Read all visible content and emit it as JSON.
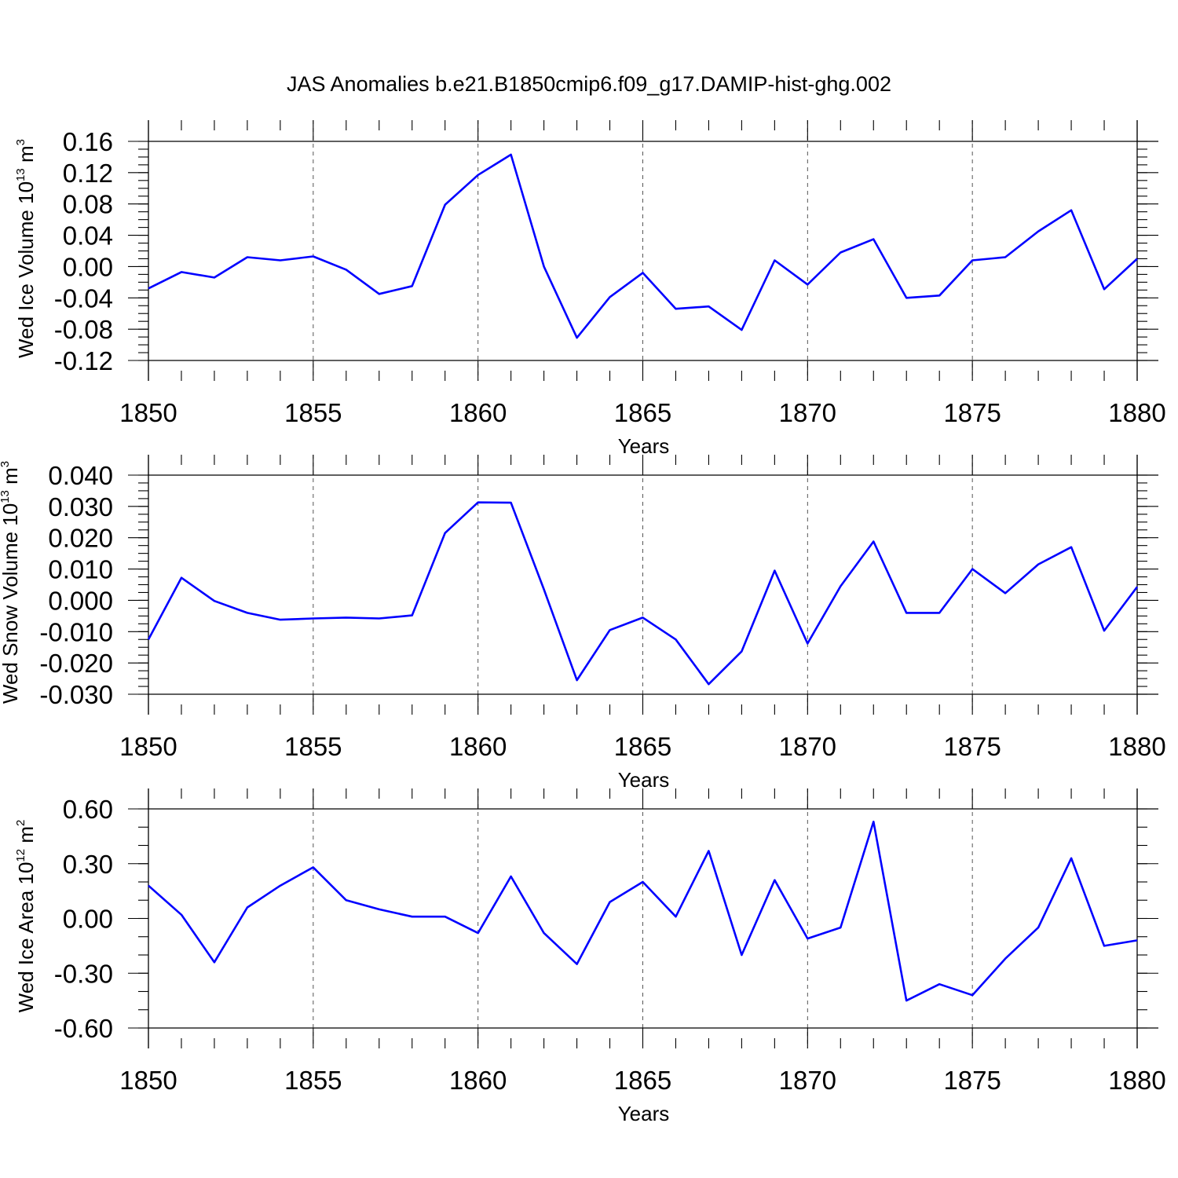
{
  "title": "JAS Anomalies b.e21.B1850cmip6.f09_g17.DAMIP-hist-ghg.002",
  "colors": {
    "line": "#0000ff",
    "axis": "#000000",
    "grid": "#555555"
  },
  "chart_data": [
    {
      "type": "line",
      "ylabel_main": "Wed Ice Volume 10",
      "ylabel_exp": "13",
      "ylabel_unit": " m",
      "ylabel_unit_exp": "3",
      "xlabel": "Years",
      "xlim": [
        1850,
        1880
      ],
      "ylim": [
        -0.12,
        0.16
      ],
      "yticks": [
        "0.16",
        "0.12",
        "0.08",
        "0.04",
        "0.00",
        "-0.04",
        "-0.08",
        "-0.12"
      ],
      "yticks_values": [
        0.16,
        0.12,
        0.08,
        0.04,
        0.0,
        -0.04,
        -0.08,
        -0.12
      ],
      "yminor_step": 0.01,
      "xticks": [
        "1850",
        "1855",
        "1860",
        "1865",
        "1870",
        "1875",
        "1880"
      ],
      "xticks_values": [
        1850,
        1855,
        1860,
        1865,
        1870,
        1875,
        1880
      ],
      "x": [
        1850,
        1851,
        1852,
        1853,
        1854,
        1855,
        1856,
        1857,
        1858,
        1859,
        1860,
        1861,
        1862,
        1863,
        1864,
        1865,
        1866,
        1867,
        1868,
        1869,
        1870,
        1871,
        1872,
        1873,
        1874,
        1875,
        1876,
        1877,
        1878,
        1879,
        1880
      ],
      "values": [
        -0.028,
        -0.007,
        -0.014,
        0.012,
        0.008,
        0.013,
        -0.004,
        -0.035,
        -0.025,
        0.079,
        0.117,
        0.143,
        0.0,
        -0.091,
        -0.039,
        -0.008,
        -0.054,
        -0.051,
        -0.081,
        0.008,
        -0.023,
        0.018,
        0.035,
        -0.04,
        -0.037,
        0.008,
        0.012,
        0.045,
        0.072,
        -0.029,
        0.01
      ]
    },
    {
      "type": "line",
      "ylabel_main": "Wed Snow Volume 10",
      "ylabel_exp": "13",
      "ylabel_unit": " m",
      "ylabel_unit_exp": "3",
      "xlabel": "Years",
      "xlim": [
        1850,
        1880
      ],
      "ylim": [
        -0.03,
        0.04
      ],
      "yticks": [
        "0.040",
        "0.030",
        "0.020",
        "0.010",
        "0.000",
        "-0.010",
        "-0.020",
        "-0.030"
      ],
      "yticks_values": [
        0.04,
        0.03,
        0.02,
        0.01,
        0.0,
        -0.01,
        -0.02,
        -0.03
      ],
      "yminor_step": 0.0025,
      "xticks": [
        "1850",
        "1855",
        "1860",
        "1865",
        "1870",
        "1875",
        "1880"
      ],
      "xticks_values": [
        1850,
        1855,
        1860,
        1865,
        1870,
        1875,
        1880
      ],
      "x": [
        1850,
        1851,
        1852,
        1853,
        1854,
        1855,
        1856,
        1857,
        1858,
        1859,
        1860,
        1861,
        1862,
        1863,
        1864,
        1865,
        1866,
        1867,
        1868,
        1869,
        1870,
        1871,
        1872,
        1873,
        1874,
        1875,
        1876,
        1877,
        1878,
        1879,
        1880
      ],
      "values": [
        -0.0125,
        0.0072,
        -0.0002,
        -0.004,
        -0.0062,
        -0.0058,
        -0.0055,
        -0.0058,
        -0.0048,
        0.0215,
        0.0313,
        0.0312,
        0.0035,
        -0.0255,
        -0.0095,
        -0.0055,
        -0.0125,
        -0.0268,
        -0.0163,
        0.0095,
        -0.0138,
        0.0045,
        0.0188,
        -0.004,
        -0.004,
        0.01,
        0.0023,
        0.0115,
        0.017,
        -0.0097,
        0.0043
      ]
    },
    {
      "type": "line",
      "ylabel_main": "Wed Ice Area 10",
      "ylabel_exp": "12",
      "ylabel_unit": " m",
      "ylabel_unit_exp": "2",
      "xlabel": "Years",
      "xlim": [
        1850,
        1880
      ],
      "ylim": [
        -0.6,
        0.6
      ],
      "yticks": [
        "0.60",
        "0.30",
        "0.00",
        "-0.30",
        "-0.60"
      ],
      "yticks_values": [
        0.6,
        0.3,
        0.0,
        -0.3,
        -0.6
      ],
      "yminor_step": 0.1,
      "xticks": [
        "1850",
        "1855",
        "1860",
        "1865",
        "1870",
        "1875",
        "1880"
      ],
      "xticks_values": [
        1850,
        1855,
        1860,
        1865,
        1870,
        1875,
        1880
      ],
      "x": [
        1850,
        1851,
        1852,
        1853,
        1854,
        1855,
        1856,
        1857,
        1858,
        1859,
        1860,
        1861,
        1862,
        1863,
        1864,
        1865,
        1866,
        1867,
        1868,
        1869,
        1870,
        1871,
        1872,
        1873,
        1874,
        1875,
        1876,
        1877,
        1878,
        1879,
        1880
      ],
      "values": [
        0.18,
        0.02,
        -0.24,
        0.06,
        0.18,
        0.28,
        0.1,
        0.05,
        0.01,
        0.01,
        -0.08,
        0.23,
        -0.08,
        -0.25,
        0.09,
        0.2,
        0.01,
        0.37,
        -0.2,
        0.21,
        -0.11,
        -0.05,
        0.53,
        -0.45,
        -0.36,
        -0.42,
        -0.22,
        -0.05,
        0.33,
        -0.15,
        -0.12
      ]
    }
  ]
}
